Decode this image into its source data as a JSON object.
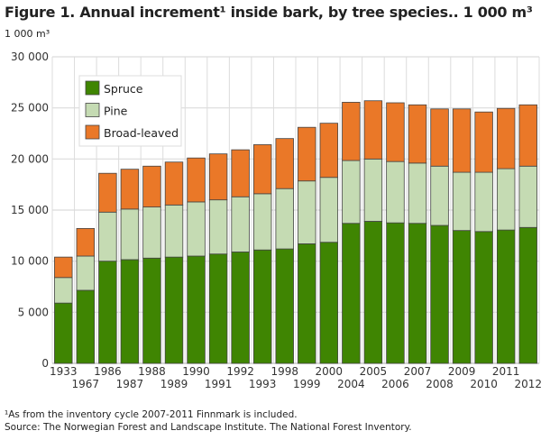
{
  "title": "Figure 1. Annual increment¹ inside bark, by tree species.. 1 000 m³",
  "footnote": "¹As from the inventory cycle 2007-2011 Finnmark is included.",
  "source": "Source: The Norwegian Forest and Landscape Institute. The National Forest Inventory.",
  "chart_data": {
    "type": "bar",
    "stacked": true,
    "title": "Figure 1. Annual increment¹ inside bark, by tree species.. 1 000 m³",
    "ylabel": "1 000 m³",
    "xlabel": "",
    "ylim": [
      0,
      30000
    ],
    "yticks": [
      0,
      5000,
      10000,
      15000,
      20000,
      25000,
      30000
    ],
    "ytick_labels": [
      "0",
      "5 000",
      "10 000",
      "15 000",
      "20 000",
      "25 000",
      "30 000"
    ],
    "grid": true,
    "legend_position": "top-left",
    "categories": [
      "1933",
      "1967",
      "1986",
      "1987",
      "1988",
      "1989",
      "1990",
      "1991",
      "1992",
      "1993",
      "1998",
      "1999",
      "2000",
      "2004",
      "2005",
      "2006",
      "2007",
      "2008",
      "2009",
      "2010",
      "2011",
      "2012"
    ],
    "series": [
      {
        "name": "Spruce",
        "color": "#3f8502",
        "values": [
          5900,
          7150,
          10000,
          10150,
          10300,
          10400,
          10500,
          10700,
          10900,
          11100,
          11200,
          11700,
          11850,
          13700,
          13900,
          13750,
          13700,
          13500,
          13000,
          12900,
          13050,
          13300
        ]
      },
      {
        "name": "Pine",
        "color": "#c5dbb3",
        "values": [
          2500,
          3350,
          4800,
          4950,
          5000,
          5100,
          5300,
          5300,
          5400,
          5500,
          5900,
          6150,
          6350,
          6150,
          6100,
          6000,
          5900,
          5800,
          5700,
          5800,
          6000,
          6000
        ]
      },
      {
        "name": "Broad-leaved",
        "color": "#ea7828",
        "values": [
          2000,
          2700,
          3800,
          3900,
          4000,
          4200,
          4300,
          4500,
          4600,
          4800,
          4900,
          5250,
          5300,
          5700,
          5700,
          5750,
          5700,
          5600,
          6200,
          5900,
          5900,
          6000
        ]
      }
    ]
  }
}
